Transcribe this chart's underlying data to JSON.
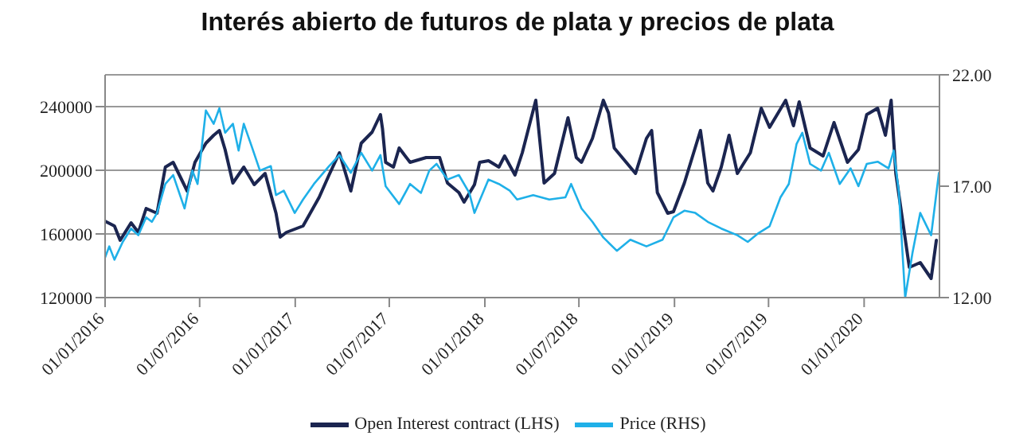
{
  "chart_data": {
    "type": "line",
    "title": "Interés abierto de futuros de plata y precios de plata",
    "xlim": [
      "2016-01-01",
      "2020-05-25"
    ],
    "xticks": [
      {
        "value": "2016-01-01",
        "label": "01/01/2016"
      },
      {
        "value": "2016-07-01",
        "label": "01/07/2016"
      },
      {
        "value": "2017-01-01",
        "label": "01/01/2017"
      },
      {
        "value": "2017-07-01",
        "label": "01/07/2017"
      },
      {
        "value": "2018-01-01",
        "label": "01/01/2018"
      },
      {
        "value": "2018-07-01",
        "label": "01/07/2018"
      },
      {
        "value": "2019-01-01",
        "label": "01/01/2019"
      },
      {
        "value": "2019-07-01",
        "label": "01/07/2019"
      },
      {
        "value": "2020-01-01",
        "label": "01/01/2020"
      }
    ],
    "ylim": [
      120000,
      260000
    ],
    "yticks": [
      120000,
      160000,
      200000,
      240000
    ],
    "y2lim": [
      12,
      22
    ],
    "y2ticks": [
      {
        "value": 12,
        "label": "12.00"
      },
      {
        "value": 17,
        "label": "17.00"
      },
      {
        "value": 22,
        "label": "22.00"
      }
    ],
    "grid": "y",
    "legend": "bottom",
    "marker": "none",
    "line_style": "solid",
    "series": [
      {
        "name": "Open Interest contract (LHS)",
        "color": "#1b2550",
        "axis": "y",
        "x": [
          "2016-01-01",
          "2016-01-19",
          "2016-01-30",
          "2016-02-20",
          "2016-03-05",
          "2016-03-20",
          "2016-04-10",
          "2016-04-26",
          "2016-05-11",
          "2016-06-07",
          "2016-06-22",
          "2016-07-13",
          "2016-07-28",
          "2016-08-08",
          "2016-08-19",
          "2016-09-03",
          "2016-09-24",
          "2016-10-14",
          "2016-11-04",
          "2016-11-25",
          "2016-12-03",
          "2016-12-15",
          "2017-01-16",
          "2017-02-16",
          "2017-03-07",
          "2017-03-27",
          "2017-04-18",
          "2017-05-08",
          "2017-05-29",
          "2017-06-14",
          "2017-06-18",
          "2017-06-24",
          "2017-07-09",
          "2017-07-20",
          "2017-08-10",
          "2017-09-10",
          "2017-10-06",
          "2017-10-21",
          "2017-11-12",
          "2017-11-22",
          "2017-12-12",
          "2017-12-22",
          "2018-01-08",
          "2018-01-28",
          "2018-02-08",
          "2018-02-28",
          "2018-03-14",
          "2018-04-09",
          "2018-04-25",
          "2018-05-15",
          "2018-06-10",
          "2018-06-26",
          "2018-07-06",
          "2018-07-27",
          "2018-08-17",
          "2018-08-27",
          "2018-09-07",
          "2018-10-18",
          "2018-11-08",
          "2018-11-18",
          "2018-11-29",
          "2018-12-19",
          "2018-12-30",
          "2019-01-20",
          "2019-02-20",
          "2019-03-06",
          "2019-03-16",
          "2019-04-01",
          "2019-04-16",
          "2019-05-02",
          "2019-05-27",
          "2019-06-17",
          "2019-07-03",
          "2019-08-03",
          "2019-08-18",
          "2019-08-29",
          "2019-09-19",
          "2019-10-14",
          "2019-11-04",
          "2019-11-30",
          "2019-12-21",
          "2020-01-06",
          "2020-01-27",
          "2020-02-11",
          "2020-02-22",
          "2020-03-02",
          "2020-03-17",
          "2020-03-28",
          "2020-04-18",
          "2020-05-09",
          "2020-05-19"
        ],
        "values": [
          168000,
          165000,
          156000,
          167000,
          161000,
          176000,
          173000,
          202000,
          205000,
          187000,
          205000,
          217000,
          222000,
          225000,
          213000,
          192000,
          202000,
          191000,
          198000,
          173000,
          158000,
          161000,
          165000,
          183000,
          197000,
          211000,
          187000,
          217000,
          224000,
          235000,
          226000,
          205000,
          202000,
          214000,
          205000,
          208000,
          208000,
          192000,
          186000,
          180000,
          191000,
          205000,
          206000,
          202000,
          209000,
          197000,
          211000,
          244000,
          192000,
          198000,
          233000,
          208000,
          205000,
          220000,
          244000,
          236000,
          214000,
          198000,
          220000,
          225000,
          186000,
          173000,
          174000,
          192000,
          225000,
          192000,
          187000,
          202000,
          222000,
          198000,
          211000,
          239000,
          227000,
          244000,
          228000,
          243000,
          214000,
          209000,
          230000,
          205000,
          213000,
          235000,
          239000,
          222000,
          244000,
          198000,
          164000,
          139000,
          142000,
          132000,
          156000
        ]
      },
      {
        "name": "Price (RHS)",
        "color": "#1fb0e8",
        "axis": "y2",
        "x": [
          "2016-01-01",
          "2016-01-09",
          "2016-01-19",
          "2016-02-04",
          "2016-02-20",
          "2016-03-05",
          "2016-03-20",
          "2016-03-31",
          "2016-04-10",
          "2016-04-26",
          "2016-05-11",
          "2016-06-02",
          "2016-06-17",
          "2016-06-27",
          "2016-07-13",
          "2016-07-28",
          "2016-08-08",
          "2016-08-19",
          "2016-09-03",
          "2016-09-14",
          "2016-09-24",
          "2016-10-09",
          "2016-10-25",
          "2016-11-15",
          "2016-11-25",
          "2016-12-10",
          "2016-12-31",
          "2017-01-16",
          "2017-02-06",
          "2017-03-07",
          "2017-03-27",
          "2017-04-18",
          "2017-05-08",
          "2017-05-29",
          "2017-06-14",
          "2017-06-24",
          "2017-07-20",
          "2017-08-10",
          "2017-08-31",
          "2017-09-16",
          "2017-09-30",
          "2017-10-21",
          "2017-11-12",
          "2017-12-02",
          "2017-12-12",
          "2018-01-08",
          "2018-01-28",
          "2018-02-18",
          "2018-03-04",
          "2018-04-04",
          "2018-05-05",
          "2018-06-05",
          "2018-06-16",
          "2018-07-06",
          "2018-07-27",
          "2018-08-17",
          "2018-09-12",
          "2018-10-08",
          "2018-11-08",
          "2018-12-09",
          "2018-12-30",
          "2019-01-20",
          "2019-02-10",
          "2019-03-06",
          "2019-04-01",
          "2019-05-02",
          "2019-05-22",
          "2019-06-12",
          "2019-07-03",
          "2019-07-24",
          "2019-08-09",
          "2019-08-24",
          "2019-09-04",
          "2019-09-19",
          "2019-10-10",
          "2019-10-25",
          "2019-11-15",
          "2019-12-06",
          "2019-12-21",
          "2020-01-06",
          "2020-01-27",
          "2020-02-17",
          "2020-02-27",
          "2020-03-08",
          "2020-03-20",
          "2020-04-03",
          "2020-04-18",
          "2020-05-09",
          "2020-05-24"
        ],
        "values": [
          13.8,
          14.3,
          13.7,
          14.5,
          15.1,
          14.8,
          15.6,
          15.4,
          15.8,
          17.1,
          17.5,
          16.0,
          17.7,
          17.1,
          20.4,
          19.8,
          20.5,
          19.4,
          19.8,
          18.6,
          19.8,
          18.8,
          17.7,
          17.9,
          16.6,
          16.8,
          15.8,
          16.4,
          17.1,
          17.9,
          18.4,
          17.6,
          18.5,
          17.7,
          18.4,
          17.0,
          16.2,
          17.1,
          16.7,
          17.7,
          18.0,
          17.3,
          17.5,
          16.7,
          15.8,
          17.3,
          17.1,
          16.8,
          16.4,
          16.6,
          16.4,
          16.5,
          17.1,
          16.0,
          15.4,
          14.7,
          14.1,
          14.6,
          14.3,
          14.6,
          15.6,
          15.9,
          15.8,
          15.4,
          15.1,
          14.8,
          14.5,
          14.9,
          15.2,
          16.5,
          17.1,
          18.9,
          19.4,
          18.0,
          17.7,
          18.5,
          17.1,
          17.8,
          17.0,
          18.0,
          18.1,
          17.8,
          18.6,
          16.7,
          12.0,
          14.0,
          15.8,
          14.8,
          17.6
        ]
      }
    ]
  }
}
